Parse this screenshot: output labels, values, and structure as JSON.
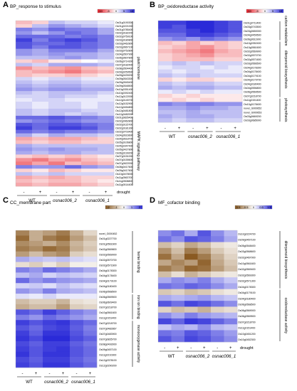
{
  "chart_data": [
    {
      "panel": "A",
      "type": "heatmap",
      "title": "BP_response to stimulus",
      "colorscale": {
        "low": "#e8202a",
        "mid": "#ffffff",
        "high": "#2a2ad8",
        "ticks": [
          "-10",
          "-5",
          "0",
          "5",
          "10"
        ],
        "range": [
          -10,
          10
        ]
      },
      "columns": [
        "-",
        "+",
        "-",
        "+",
        "-",
        "+"
      ],
      "genotypes": [
        {
          "label": "WT",
          "italic": false
        },
        {
          "label": "osnac006_2",
          "italic": true
        },
        {
          "label": "osnac006_1",
          "italic": true
        }
      ],
      "treatment_label": "drought",
      "categories": [
        {
          "label": "plant hormone",
          "start": 0,
          "end": 26
        },
        {
          "label": "MAPK signaling pathway",
          "start": 27,
          "end": 46
        }
      ],
      "rows": [
        "Os01g0190300",
        "Os01g0221000",
        "Os01g0785400",
        "Os02g0182200",
        "Os02g0759100",
        "Os03g0180800",
        "Os03g0462800",
        "Os03g0667100",
        "Os03g0752800",
        "Os04g0507900",
        "Os06g0607800",
        "Os06g0714300",
        "Os07g0182400",
        "Os08g0504400",
        "Os09g0259500",
        "Os09g0439200",
        "Os09g0543300",
        "Os09g0545400",
        "Os09g0548500",
        "Os10g0351400",
        "Os10g0392400",
        "Os12g0122000",
        "Os12g0145700",
        "Os12g0152900",
        "Os12g0454800",
        "Os12g0481800",
        "Os12g0482000",
        "Os01g0826400",
        "Os02g0962800",
        "Os02g0115700",
        "Os02g0181300",
        "Os02g0703400",
        "Os04g0616600",
        "Os04g0618700",
        "Os05g0106800",
        "Os05g0347400",
        "Os05g0427800",
        "Os06g0199200",
        "Os07g0151000",
        "Os07g0155600",
        "Os07g0622000",
        "Os08g0417600",
        "Os09g0417600",
        "Os10g0478000",
        "Os11g0563700",
        "Os11g0508800",
        "Os11g0514400"
      ],
      "values": [
        [
          -3,
          -2,
          3,
          2,
          2,
          1
        ],
        [
          -2,
          3,
          5,
          4,
          3,
          2
        ],
        [
          6,
          5,
          7,
          6,
          6,
          4
        ],
        [
          5,
          3,
          5,
          7,
          6,
          4
        ],
        [
          7,
          7,
          7,
          6,
          7,
          6
        ],
        [
          9,
          6,
          8,
          9,
          8,
          6
        ],
        [
          8,
          7,
          7,
          8,
          7,
          6
        ],
        [
          8,
          6,
          8,
          8,
          7,
          6
        ],
        [
          5,
          4,
          6,
          6,
          6,
          4
        ],
        [
          5,
          4,
          5,
          4,
          4,
          3
        ],
        [
          3,
          3,
          4,
          5,
          4,
          3
        ],
        [
          -2,
          -3,
          -1,
          -1,
          0,
          1
        ],
        [
          3,
          2,
          4,
          4,
          4,
          3
        ],
        [
          -5,
          -3,
          -4,
          -5,
          -3,
          -2
        ],
        [
          -3,
          -4,
          -5,
          -6,
          -4,
          -3
        ],
        [
          -3,
          -2,
          -2,
          -3,
          -2,
          -1
        ],
        [
          2,
          1,
          2,
          2,
          1,
          1
        ],
        [
          3,
          2,
          3,
          3,
          2,
          2
        ],
        [
          4,
          3,
          4,
          4,
          3,
          3
        ],
        [
          5,
          4,
          5,
          5,
          4,
          4
        ],
        [
          3,
          2,
          3,
          3,
          3,
          2
        ],
        [
          2,
          2,
          3,
          2,
          2,
          1
        ],
        [
          1,
          2,
          2,
          1,
          1,
          1
        ],
        [
          2,
          1,
          2,
          2,
          1,
          2
        ],
        [
          2,
          1,
          2,
          2,
          1,
          2
        ],
        [
          3,
          2,
          3,
          3,
          2,
          2
        ],
        [
          3,
          2,
          3,
          2,
          3,
          2
        ],
        [
          7,
          7,
          8,
          7,
          6,
          5
        ],
        [
          5,
          6,
          7,
          6,
          5,
          5
        ],
        [
          8,
          7,
          8,
          8,
          7,
          6
        ],
        [
          9,
          7,
          9,
          9,
          8,
          6
        ],
        [
          7,
          6,
          7,
          6,
          6,
          5
        ],
        [
          4,
          2,
          4,
          3,
          3,
          2
        ],
        [
          -4,
          -3,
          -4,
          -4,
          -3,
          -2
        ],
        [
          -3,
          -2,
          -3,
          -3,
          -2,
          -2
        ],
        [
          4,
          3,
          3,
          3,
          3,
          3
        ],
        [
          5,
          4,
          5,
          4,
          4,
          3
        ],
        [
          4,
          3,
          4,
          4,
          3,
          3
        ],
        [
          -2,
          -3,
          -2,
          -3,
          -2,
          -1
        ],
        [
          -5,
          -6,
          -4,
          -5,
          -3,
          -2
        ],
        [
          -6,
          -4,
          -6,
          -3,
          -4,
          -3
        ],
        [
          6,
          5,
          5,
          7,
          5,
          4
        ],
        [
          -2,
          -1,
          -3,
          -2,
          -1,
          -1
        ],
        [
          3,
          2,
          3,
          2,
          2,
          2
        ],
        [
          -4,
          -3,
          -4,
          -3,
          -2,
          -2
        ],
        [
          -3,
          -2,
          -3,
          -3,
          -2,
          -1
        ],
        [
          -4,
          -3,
          -4,
          -4,
          -3,
          -2
        ]
      ]
    },
    {
      "panel": "B",
      "type": "heatmap",
      "title": "BP_oxidoreductase activity",
      "colorscale": {
        "low": "#e8202a",
        "mid": "#ffffff",
        "high": "#2a2ad8",
        "ticks": [
          "-10",
          "-5",
          "0",
          "5",
          "10"
        ],
        "range": [
          -10,
          10
        ]
      },
      "columns": [
        "-",
        "+",
        "-",
        "+",
        "-",
        "+"
      ],
      "genotypes": [
        {
          "label": "WT",
          "italic": false
        },
        {
          "label": "osnac006_2",
          "italic": true
        },
        {
          "label": "osnac006_1",
          "italic": true
        }
      ],
      "treatment_label": "",
      "categories": [
        {
          "label": "carbon metabolism",
          "start": 0,
          "end": 4
        },
        {
          "label": "diterpenoid biosynthesis",
          "start": 5,
          "end": 18
        },
        {
          "label": "photosynthesis",
          "start": 19,
          "end": 24
        }
      ],
      "rows": [
        "Os01g0711400",
        "Os03g0743500",
        "Os03g0650000",
        "Os04g0459500",
        "Os06g0611900",
        "Os10g0352400",
        "Os10g0561600",
        "Os02g0569900",
        "Os02g0570700",
        "Os02g0571600",
        "Os03g0566500",
        "Os04g0178300",
        "Os04g0178400",
        "Os04g0179100",
        "Os04g0179700",
        "Os04g0180400",
        "Os04g0556800",
        "Os06g0569500",
        "Os07g0218700",
        "Os11g0151400",
        "Os10g0178400",
        "novel_G000652",
        "novel_G000653",
        "Os03g0669200",
        "Os03g0685000"
      ],
      "values": [
        [
          9,
          9,
          10,
          10,
          9,
          8
        ],
        [
          9,
          8,
          10,
          10,
          9,
          8
        ],
        [
          8,
          8,
          9,
          10,
          9,
          8
        ],
        [
          7,
          7,
          9,
          9,
          8,
          7
        ],
        [
          5,
          6,
          5,
          7,
          6,
          5
        ],
        [
          -3,
          -2,
          -4,
          -2,
          -3,
          -2
        ],
        [
          -2,
          -3,
          -4,
          -5,
          -3,
          -2
        ],
        [
          -3,
          -4,
          -5,
          -6,
          -4,
          -3
        ],
        [
          -2,
          -3,
          -4,
          -5,
          -3,
          -3
        ],
        [
          -2,
          -3,
          -3,
          -3,
          -2,
          -2
        ],
        [
          2,
          3,
          2,
          3,
          2,
          2
        ],
        [
          1,
          2,
          2,
          1,
          2,
          1
        ],
        [
          2,
          1,
          2,
          2,
          1,
          1
        ],
        [
          3,
          2,
          3,
          2,
          2,
          2
        ],
        [
          -2,
          -1,
          -2,
          -2,
          -1,
          -1
        ],
        [
          3,
          2,
          3,
          3,
          2,
          2
        ],
        [
          4,
          3,
          4,
          4,
          3,
          3
        ],
        [
          1,
          2,
          1,
          2,
          1,
          1
        ],
        [
          -2,
          -1,
          -2,
          -1,
          -1,
          -1
        ],
        [
          -1,
          -2,
          -1,
          -2,
          -1,
          -1
        ],
        [
          6,
          5,
          6,
          6,
          5,
          5
        ],
        [
          4,
          4,
          5,
          4,
          4,
          3
        ],
        [
          3,
          3,
          4,
          3,
          3,
          3
        ],
        [
          4,
          3,
          4,
          4,
          3,
          3
        ],
        [
          3,
          2,
          3,
          3,
          2,
          2
        ]
      ]
    },
    {
      "panel": "C",
      "type": "heatmap",
      "title": "CC_membrane part",
      "colorscale": {
        "low": "#8a5a22",
        "mid": "#ffffff",
        "high": "#2a2ad8",
        "ticks": [
          "-2",
          "-1",
          "0",
          "1",
          "2"
        ],
        "range": [
          -2,
          2
        ]
      },
      "columns": [
        "-",
        "+",
        "-",
        "+",
        "-",
        "+"
      ],
      "genotypes": [
        {
          "label": "WT",
          "italic": false
        },
        {
          "label": "osnac006_2",
          "italic": true
        },
        {
          "label": "osnac006_1",
          "italic": true
        }
      ],
      "treatment_label": "",
      "categories": [
        {
          "label": "heme binding",
          "start": 0,
          "end": 11
        },
        {
          "label": "iron ion binding",
          "start": 12,
          "end": 16
        },
        {
          "label": "monooxygenase activity",
          "start": 17,
          "end": 25
        }
      ],
      "rows": [
        "novel_G000452",
        "Os01g0227700",
        "Os01g0561600",
        "Os02g0569800",
        "Os02g0569000",
        "Os02g0570700",
        "Os02g0571600",
        "Os04g0178300",
        "Os04g0178400",
        "Os04g0179100",
        "Os04g0180400",
        "Os06g0568500",
        "Os06g0569500",
        "Os06g0609400",
        "Os07g0218700",
        "Os10g0561600",
        "Os11g0151400",
        "Os07g0218700",
        "Os07g0482867",
        "Os07g0483900",
        "Os07g0835700",
        "Os08g0493000",
        "Os09g0457100",
        "Os11g0210300",
        "Os12g0378100",
        "Os12g0290200"
      ],
      "values": [
        [
          -1.5,
          -1.0,
          -1.2,
          -1.6,
          -1.0,
          -0.5
        ],
        [
          -1.8,
          -1.0,
          -1.6,
          -1.8,
          -1.2,
          -0.8
        ],
        [
          -1.4,
          -1.2,
          -1.0,
          -1.4,
          -0.9,
          -0.6
        ],
        [
          -1.6,
          -1.4,
          -1.8,
          -1.6,
          -1.0,
          -0.7
        ],
        [
          -1.2,
          -0.8,
          -1.2,
          -1.4,
          -0.6,
          -0.4
        ],
        [
          0.8,
          0.6,
          0.5,
          0.6,
          0.4,
          0.3
        ],
        [
          -0.4,
          -0.6,
          -0.3,
          -0.6,
          -0.2,
          -0.2
        ],
        [
          1.2,
          1.0,
          1.4,
          1.2,
          1.0,
          0.8
        ],
        [
          0.6,
          0.8,
          0.4,
          0.6,
          0.5,
          0.4
        ],
        [
          1.4,
          1.0,
          1.2,
          1.0,
          0.9,
          0.8
        ],
        [
          0.4,
          0.5,
          0.3,
          0.6,
          0.4,
          0.3
        ],
        [
          1.0,
          0.8,
          1.2,
          0.8,
          0.7,
          0.6
        ],
        [
          0.3,
          0.2,
          0.4,
          0.2,
          0.2,
          0.2
        ],
        [
          -0.8,
          -0.6,
          -0.6,
          -0.9,
          -0.4,
          -0.3
        ],
        [
          -1.0,
          -0.8,
          -0.8,
          -1.2,
          -0.6,
          -0.5
        ],
        [
          1.6,
          1.4,
          1.8,
          1.5,
          1.2,
          1.0
        ],
        [
          1.2,
          1.0,
          1.4,
          1.2,
          1.0,
          0.8
        ],
        [
          1.8,
          1.6,
          1.8,
          1.9,
          1.6,
          1.4
        ],
        [
          1.6,
          1.4,
          1.7,
          1.8,
          1.5,
          1.2
        ],
        [
          1.8,
          1.5,
          1.9,
          1.9,
          1.6,
          1.3
        ],
        [
          1.9,
          1.7,
          2.0,
          2.0,
          1.7,
          1.5
        ],
        [
          1.7,
          1.5,
          1.8,
          1.8,
          1.5,
          1.3
        ],
        [
          1.8,
          1.6,
          1.8,
          1.9,
          1.6,
          1.4
        ],
        [
          1.9,
          1.6,
          1.9,
          1.9,
          1.6,
          1.4
        ],
        [
          1.7,
          1.5,
          1.8,
          1.8,
          1.5,
          1.3
        ],
        [
          1.8,
          1.6,
          1.9,
          1.9,
          1.6,
          1.4
        ]
      ]
    },
    {
      "panel": "D",
      "type": "heatmap",
      "title": "MF_cofactor binding",
      "colorscale": {
        "low": "#8a5a22",
        "mid": "#ffffff",
        "high": "#2a2ad8",
        "ticks": [
          "-1.5",
          "-0.5",
          "0",
          "0.5",
          "1.5"
        ],
        "range": [
          -1.5,
          1.5
        ]
      },
      "columns": [
        "-",
        "+",
        "-",
        "+",
        "-",
        "+"
      ],
      "genotypes": [
        {
          "label": "WT",
          "italic": false
        },
        {
          "label": "osnac006_2",
          "italic": true
        },
        {
          "label": "osnac006_1",
          "italic": true
        }
      ],
      "treatment_label": "drought",
      "categories": [
        {
          "label": "diterpenoid biosynthesis",
          "start": 0,
          "end": 9
        },
        {
          "label": "oxidoreductase activity",
          "start": 10,
          "end": 18
        }
      ],
      "rows": [
        "Os10g0224700",
        "Os09g0457100",
        "Os05g0548400",
        "Os03g0568600",
        "Os02g0467000",
        "Os10g0561600",
        "Os02g0569400",
        "Os02g0569300",
        "Os02g0571300",
        "Os04g0178300",
        "Os04g0179100",
        "Os04g0180400",
        "Os06g0568500",
        "Os06g0569000",
        "Os06g0569500",
        "Os07g0218700",
        "Os11g0151400",
        "Os10g0451200",
        "Os10g0452300"
      ],
      "values": [
        [
          0.8,
          1.0,
          0.6,
          1.2,
          0.8,
          0.5
        ],
        [
          1.0,
          0.8,
          1.2,
          1.1,
          0.9,
          0.6
        ],
        [
          -0.6,
          -0.4,
          -0.8,
          -0.6,
          -0.3,
          -0.2
        ],
        [
          -1.0,
          -0.6,
          -1.2,
          -0.9,
          -0.5,
          -0.3
        ],
        [
          -1.3,
          -0.8,
          -1.5,
          -1.2,
          -0.7,
          -0.4
        ],
        [
          -0.8,
          -1.1,
          -0.9,
          -1.4,
          -0.8,
          -0.5
        ],
        [
          -1.2,
          -1.0,
          -1.4,
          -1.3,
          -0.9,
          -0.6
        ],
        [
          -0.6,
          -0.3,
          -0.7,
          -0.5,
          -0.3,
          -0.2
        ],
        [
          0.6,
          0.8,
          0.7,
          0.9,
          0.6,
          0.4
        ],
        [
          1.0,
          0.9,
          1.1,
          1.0,
          0.8,
          0.6
        ],
        [
          -0.5,
          -0.4,
          -0.6,
          -0.5,
          -0.3,
          -0.2
        ],
        [
          0.6,
          0.5,
          0.6,
          0.7,
          0.5,
          0.4
        ],
        [
          1.2,
          1.0,
          1.3,
          1.2,
          1.0,
          0.8
        ],
        [
          -0.4,
          -0.6,
          -0.5,
          -0.7,
          -0.4,
          -0.3
        ],
        [
          0.8,
          0.6,
          0.9,
          0.7,
          0.6,
          0.5
        ],
        [
          1.3,
          1.1,
          1.4,
          1.3,
          1.1,
          0.9
        ],
        [
          0.4,
          0.6,
          0.5,
          0.8,
          0.5,
          0.4
        ],
        [
          1.0,
          0.9,
          1.2,
          1.1,
          0.9,
          0.7
        ],
        [
          1.2,
          1.0,
          1.3,
          1.2,
          1.0,
          0.8
        ]
      ]
    }
  ]
}
